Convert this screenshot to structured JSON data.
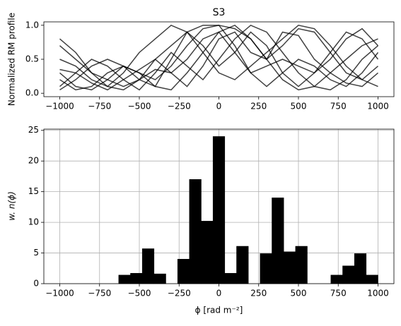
{
  "chart_data": [
    {
      "type": "line",
      "title": "S3",
      "ylabel": "Normalized RM profile",
      "color": "#000000",
      "x": [
        -1000,
        -900,
        -800,
        -700,
        -600,
        -500,
        -400,
        -300,
        -200,
        -100,
        0,
        100,
        200,
        300,
        400,
        500,
        600,
        700,
        800,
        900,
        1000
      ],
      "series": [
        {
          "values": [
            0.8,
            0.6,
            0.3,
            0.1,
            0.05,
            0.2,
            0.5,
            0.7,
            0.9,
            1.0,
            1.0,
            0.95,
            0.8,
            0.5,
            0.2,
            0.05,
            0.1,
            0.3,
            0.5,
            0.7,
            0.8
          ]
        },
        {
          "values": [
            0.3,
            0.1,
            0.05,
            0.2,
            0.4,
            0.3,
            0.1,
            0.05,
            0.3,
            0.6,
            0.9,
            1.0,
            0.8,
            0.5,
            0.7,
            0.95,
            0.9,
            0.6,
            0.3,
            0.2,
            0.4
          ]
        },
        {
          "values": [
            0.1,
            0.3,
            0.5,
            0.4,
            0.2,
            0.05,
            0.3,
            0.6,
            0.4,
            0.2,
            0.5,
            0.8,
            1.0,
            0.9,
            0.6,
            0.3,
            0.1,
            0.05,
            0.2,
            0.5,
            0.7
          ]
        },
        {
          "values": [
            0.5,
            0.4,
            0.2,
            0.1,
            0.3,
            0.6,
            0.8,
            1.0,
            0.9,
            0.6,
            0.3,
            0.2,
            0.4,
            0.6,
            0.8,
            1.0,
            0.95,
            0.7,
            0.4,
            0.2,
            0.1
          ]
        },
        {
          "values": [
            0.2,
            0.05,
            0.1,
            0.3,
            0.4,
            0.3,
            0.2,
            0.4,
            0.7,
            0.95,
            1.0,
            0.7,
            0.3,
            0.1,
            0.3,
            0.5,
            0.4,
            0.2,
            0.1,
            0.3,
            0.6
          ]
        },
        {
          "values": [
            0.7,
            0.5,
            0.3,
            0.2,
            0.1,
            0.2,
            0.35,
            0.3,
            0.5,
            0.8,
            0.9,
            0.6,
            0.3,
            0.4,
            0.5,
            0.4,
            0.3,
            0.5,
            0.8,
            0.95,
            0.7
          ]
        },
        {
          "values": [
            0.05,
            0.2,
            0.4,
            0.5,
            0.4,
            0.2,
            0.1,
            0.5,
            0.9,
            0.7,
            0.4,
            0.6,
            0.9,
            0.7,
            0.3,
            0.1,
            0.3,
            0.6,
            0.9,
            0.8,
            0.5
          ]
        },
        {
          "values": [
            0.35,
            0.3,
            0.15,
            0.05,
            0.2,
            0.35,
            0.5,
            0.3,
            0.1,
            0.4,
            0.8,
            0.9,
            0.6,
            0.5,
            0.9,
            0.85,
            0.5,
            0.3,
            0.15,
            0.1,
            0.3
          ]
        }
      ],
      "xlim": [
        -1100,
        1100
      ],
      "xticks": [
        {
          "value": -1000,
          "label": "−1000"
        },
        {
          "value": -750,
          "label": "−750"
        },
        {
          "value": -500,
          "label": "−500"
        },
        {
          "value": -250,
          "label": "−250"
        },
        0,
        250,
        500,
        750,
        1000
      ],
      "ylim": [
        -0.05,
        1.05
      ],
      "yticks": [
        {
          "value": 0,
          "label": "0.0"
        },
        {
          "value": 0.5,
          "label": "0.5"
        },
        {
          "value": 1,
          "label": "1.0"
        }
      ],
      "grid": false
    },
    {
      "type": "histogram",
      "xlabel": "ϕ [rad m⁻²]",
      "ylabel": "w. n(ϕ)",
      "color": "#000000",
      "bins": [
        -1000,
        -925.9,
        -851.9,
        -777.8,
        -703.7,
        -629.6,
        -555.6,
        -481.5,
        -407.4,
        -333.3,
        -259.3,
        -185.2,
        -111.1,
        -37,
        37,
        111.1,
        185.2,
        259.3,
        333.3,
        407.4,
        481.5,
        555.6,
        629.6,
        703.7,
        777.8,
        851.9,
        925.9,
        1000
      ],
      "values": [
        0,
        0,
        0,
        0,
        0,
        1.4,
        1.7,
        5.7,
        1.6,
        0,
        4,
        17,
        10.2,
        24,
        1.7,
        6.1,
        0,
        4.9,
        14,
        5.2,
        6.1,
        0,
        0,
        1.4,
        2.9,
        4.9,
        1.4
      ],
      "xlim": [
        -1100,
        1100
      ],
      "xticks": [
        {
          "value": -1000,
          "label": "−1000"
        },
        {
          "value": -750,
          "label": "−750"
        },
        {
          "value": -500,
          "label": "−500"
        },
        {
          "value": -250,
          "label": "−250"
        },
        0,
        250,
        500,
        750,
        1000
      ],
      "ylim": [
        0,
        25.2
      ],
      "yticks": [
        0,
        5,
        10,
        15,
        20,
        25
      ],
      "grid": true
    }
  ]
}
